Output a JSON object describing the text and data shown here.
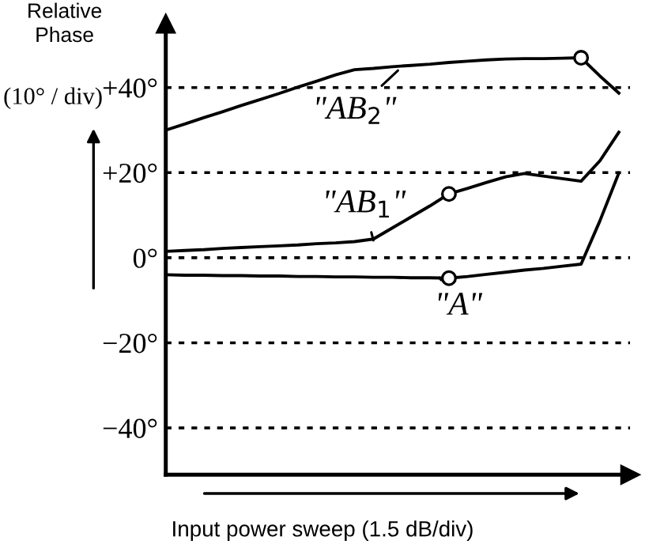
{
  "chart_data": {
    "type": "line",
    "ylabel": "Relative Phase",
    "xlabel": "Input power sweep (1.5 dB/div)",
    "annotations": [
      "\"AB$_{2}$\"",
      "\"AB$_{1}$\"",
      "\"A\"",
      "(10° / div)"
    ],
    "categories": [
      null,
      null,
      null,
      null,
      null,
      null,
      null,
      null,
      null,
      null,
      null,
      null,
      null,
      null,
      null,
      null,
      null,
      null,
      null,
      null,
      null,
      null,
      null,
      null,
      null
    ],
    "series": [
      {
        "color": "#000000",
        "values": [
          30,
          31.4,
          32.9,
          34.3,
          35.8,
          37.2,
          38.6,
          40.1,
          41.5,
          43.0,
          44.2,
          44.5,
          44.9,
          45.2,
          45.5,
          45.9,
          46.2,
          46.5,
          46.7,
          46.8,
          46.8,
          46.9,
          47,
          42.7,
          38.7
        ]
      },
      {
        "color": "#000000",
        "values": [
          1.5,
          1.7,
          1.9,
          2.2,
          2.4,
          2.6,
          2.8,
          3.0,
          3.3,
          3.5,
          3.8,
          4.4,
          7.0,
          9.6,
          12.2,
          15.0,
          16.3,
          17.7,
          19.0,
          19.8,
          19.2,
          18.6,
          18.0,
          22.8,
          29.5
        ]
      },
      {
        "color": "#000000",
        "values": [
          -4.0,
          -4.1,
          -4.1,
          -4.2,
          -4.2,
          -4.3,
          -4.3,
          -4.4,
          -4.4,
          -4.5,
          -4.5,
          -4.6,
          -4.6,
          -4.7,
          -4.7,
          -4.8,
          -4.4,
          -3.9,
          -3.4,
          -2.9,
          -2.5,
          -2.0,
          -1.5,
          8.7,
          19.9
        ]
      },
      {
        "type": "scatter",
        "marker": "circle",
        "color": "#000000",
        "values": [
          null,
          null,
          null,
          null,
          null,
          null,
          null,
          null,
          null,
          null,
          null,
          null,
          null,
          null,
          null,
          15.0,
          null,
          null,
          null,
          null,
          null,
          null,
          47,
          null,
          null
        ]
      },
      {
        "type": "scatter",
        "marker": "circle",
        "color": "#000000",
        "values": [
          null,
          null,
          null,
          null,
          null,
          null,
          null,
          null,
          null,
          null,
          null,
          null,
          null,
          null,
          null,
          -4.8,
          null,
          null,
          null,
          null,
          null,
          null,
          null,
          null,
          null
        ]
      }
    ],
    "ylim": [
      -51,
      55
    ],
    "yticks": [
      {
        "value": 40,
        "label": "+40°"
      },
      {
        "value": 20,
        "label": "+20°"
      },
      {
        "value": 0,
        "label": "0°"
      },
      {
        "value": -20,
        "label": "−20°"
      },
      {
        "value": -40,
        "label": "−40°"
      }
    ],
    "grid": "y",
    "tick_labels": "y",
    "line_style": "solid"
  }
}
